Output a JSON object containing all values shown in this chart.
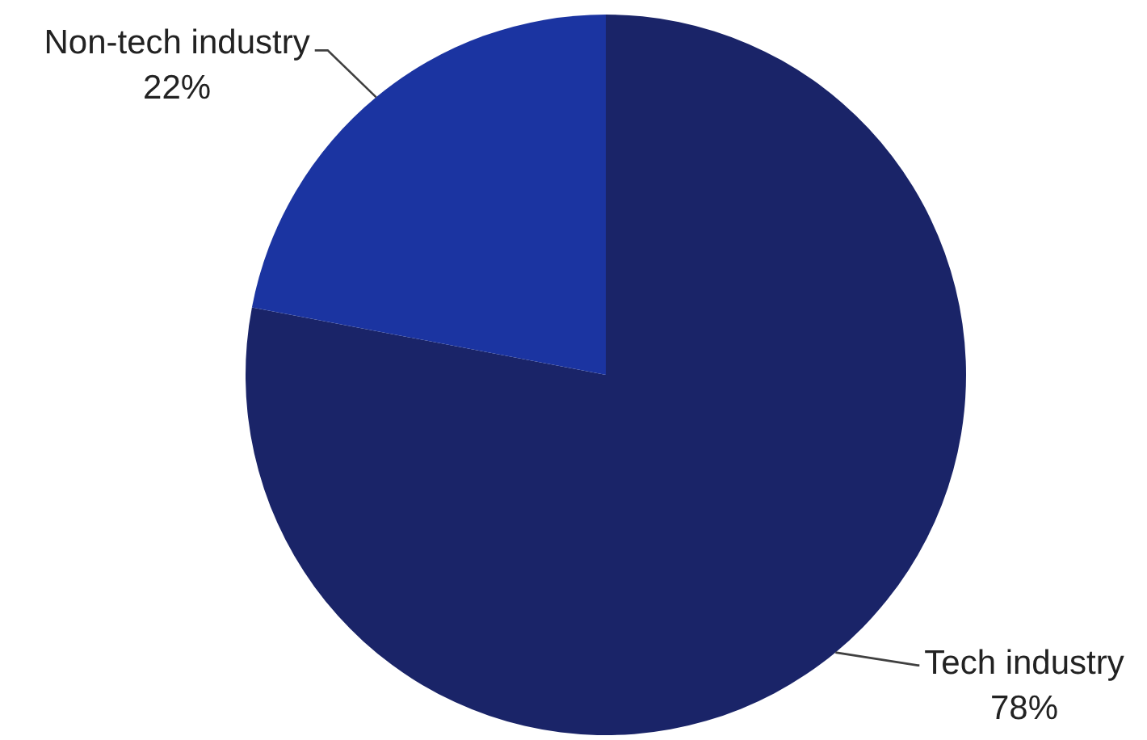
{
  "chart_data": {
    "type": "pie",
    "categories": [
      "Tech industry",
      "Non-tech industry"
    ],
    "values": [
      78,
      22
    ],
    "colors": [
      "#1a2468",
      "#1b34a1"
    ],
    "value_labels": [
      "78%",
      "22%"
    ]
  }
}
